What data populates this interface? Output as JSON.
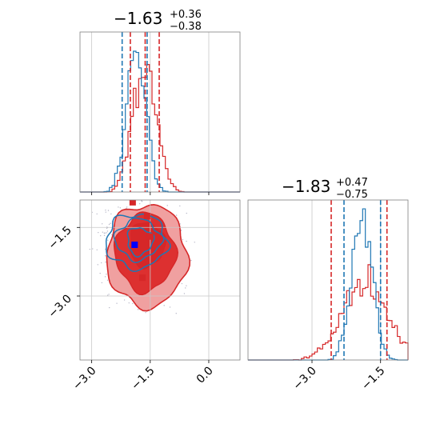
{
  "chart_data": {
    "type": "corner",
    "colors": {
      "red": "#d62728",
      "blue": "#1f77b4",
      "red_fill_light": "#f0a0a0",
      "red_fill_dark": "#dd3030",
      "scatter": "#b8b8c8"
    },
    "grid": true,
    "panels": [
      {
        "id": "hist-x",
        "type": "histogram",
        "title": {
          "value": "−1.63",
          "sup": "+0.36",
          "sub": "−0.38"
        },
        "xlim": [
          -3.3,
          0.8
        ],
        "series": [
          {
            "name": "",
            "color": "#d62728",
            "center": -1.63,
            "sigma": 0.37,
            "quantiles": [
              -2.01,
              -1.63,
              -1.27
            ]
          },
          {
            "name": "",
            "color": "#1f77b4",
            "center": -1.85,
            "sigma": 0.3,
            "quantiles": [
              -2.22,
              -1.58
            ]
          }
        ]
      },
      {
        "id": "hist-y",
        "type": "histogram",
        "title": {
          "value": "−1.83",
          "sup": "+0.47",
          "sub": "−0.75"
        },
        "xlim": [
          -4.4,
          -0.9
        ],
        "xticks": [
          "−3.0",
          "−1.5"
        ],
        "xtick_values": [
          -3.0,
          -1.5
        ],
        "series": [
          {
            "name": "",
            "color": "#d62728",
            "center": -1.83,
            "sigma": 0.6,
            "quantiles": [
              -2.58,
              -1.36
            ]
          },
          {
            "name": "",
            "color": "#1f77b4",
            "center": -1.9,
            "sigma": 0.28,
            "quantiles": [
              -2.3,
              -1.5
            ]
          }
        ]
      },
      {
        "id": "joint",
        "type": "scatter",
        "xlim": [
          -3.3,
          0.8
        ],
        "ylim": [
          -4.4,
          -0.9
        ],
        "xticks": [
          "−3.0",
          "−1.5",
          "0.0"
        ],
        "xtick_values": [
          -3.0,
          -1.5,
          0.0
        ],
        "yticks": [
          "−1.5",
          "−3.0"
        ],
        "ytick_values": [
          -1.5,
          -3.0
        ],
        "points_red": [
          [
            -1.58,
            -1.25
          ],
          [
            -1.5,
            -1.7
          ],
          [
            -1.7,
            -2.6
          ],
          [
            -1.95,
            -0.95
          ]
        ],
        "point_blue": [
          -1.9,
          -1.88
        ]
      }
    ]
  }
}
